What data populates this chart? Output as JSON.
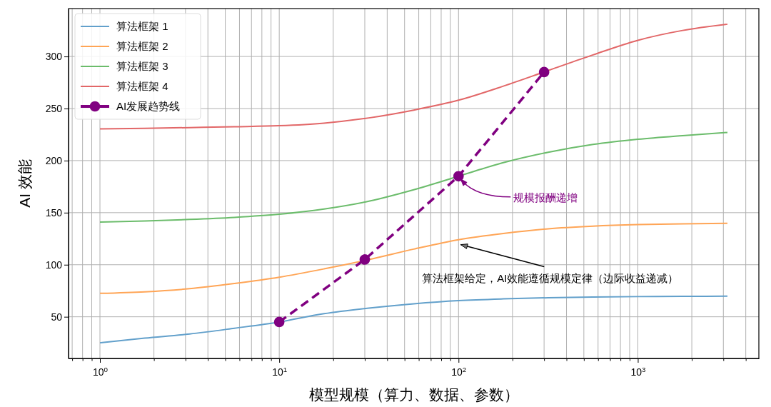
{
  "chart_data": {
    "type": "line",
    "xlabel": "模型规模（算力、数据、参数）",
    "ylabel": "AI 效能",
    "log": "x",
    "grid": true,
    "legend": "top left",
    "marker": "none",
    "line_style": "solid",
    "x": [
      1,
      1.778,
      3.162,
      5.623,
      10,
      17.78,
      31.62,
      56.23,
      100,
      177.8,
      316.2,
      562.3,
      1000,
      1778,
      3162
    ],
    "xlim": [
      0.668,
      4732
    ],
    "ylim": [
      10,
      346
    ],
    "xticks": [
      {
        "value": 0.7,
        "label": null
      },
      {
        "value": 0.8,
        "label": null
      },
      {
        "value": 0.9,
        "label": null
      },
      {
        "value": 1,
        "label": "10$^{0}$"
      },
      {
        "value": 2,
        "label": null
      },
      {
        "value": 3,
        "label": null
      },
      {
        "value": 4,
        "label": null
      },
      {
        "value": 5,
        "label": null
      },
      {
        "value": 6,
        "label": null
      },
      {
        "value": 7,
        "label": null
      },
      {
        "value": 8,
        "label": null
      },
      {
        "value": 9,
        "label": null
      },
      {
        "value": 10,
        "label": "10$^{1}$"
      },
      {
        "value": 20,
        "label": null
      },
      {
        "value": 30,
        "label": null
      },
      {
        "value": 40,
        "label": null
      },
      {
        "value": 50,
        "label": null
      },
      {
        "value": 60,
        "label": null
      },
      {
        "value": 70,
        "label": null
      },
      {
        "value": 80,
        "label": null
      },
      {
        "value": 90,
        "label": null
      },
      {
        "value": 100,
        "label": "10$^{2}$"
      },
      {
        "value": 200,
        "label": null
      },
      {
        "value": 300,
        "label": null
      },
      {
        "value": 400,
        "label": null
      },
      {
        "value": 500,
        "label": null
      },
      {
        "value": 600,
        "label": null
      },
      {
        "value": 700,
        "label": null
      },
      {
        "value": 800,
        "label": null
      },
      {
        "value": 900,
        "label": null
      },
      {
        "value": 1000,
        "label": "10$^{3}$"
      },
      {
        "value": 2000,
        "label": null
      },
      {
        "value": 3000,
        "label": null
      },
      {
        "value": 4000,
        "label": null
      }
    ],
    "yticks": [
      50,
      100,
      150,
      200,
      250,
      300
    ],
    "series": [
      {
        "name": "算法框架 1",
        "color": "#62a0cb",
        "values": [
          25,
          29.5,
          33.5,
          39,
          45,
          53,
          58.4,
          62.5,
          65.5,
          67.2,
          68.3,
          69,
          69.4,
          69.6,
          69.8
        ]
      },
      {
        "name": "算法框架 2",
        "color": "#ffa556",
        "values": [
          72.5,
          74,
          77,
          82,
          88,
          96,
          105,
          115,
          124,
          130,
          134.5,
          137,
          138.5,
          139.3,
          139.8
        ]
      },
      {
        "name": "算法框架 3",
        "color": "#6bbc6b",
        "values": [
          141,
          142,
          143.5,
          145.5,
          148.5,
          153.5,
          161,
          172,
          185,
          198,
          208,
          215.5,
          220.5,
          224,
          227
        ]
      },
      {
        "name": "算法框架 4",
        "color": "#e26768",
        "values": [
          230.5,
          231,
          231.7,
          232.5,
          233.5,
          236,
          241,
          248.5,
          258,
          271.5,
          286.5,
          301.5,
          315.5,
          325,
          331
        ]
      },
      {
        "name": "AI发展趋势线",
        "color": "#800080",
        "x": [
          10,
          30,
          100,
          300
        ],
        "values": [
          45,
          105,
          185,
          285
        ],
        "marker": "circle",
        "line_style": "dashed"
      }
    ],
    "annotations": [
      {
        "text": "规模报酬递增",
        "x": 100,
        "y": 185
      },
      {
        "text": "算法框架给定，AI效能遵循规模定律（边际收益递减）",
        "x": 100,
        "y": 120
      }
    ]
  }
}
